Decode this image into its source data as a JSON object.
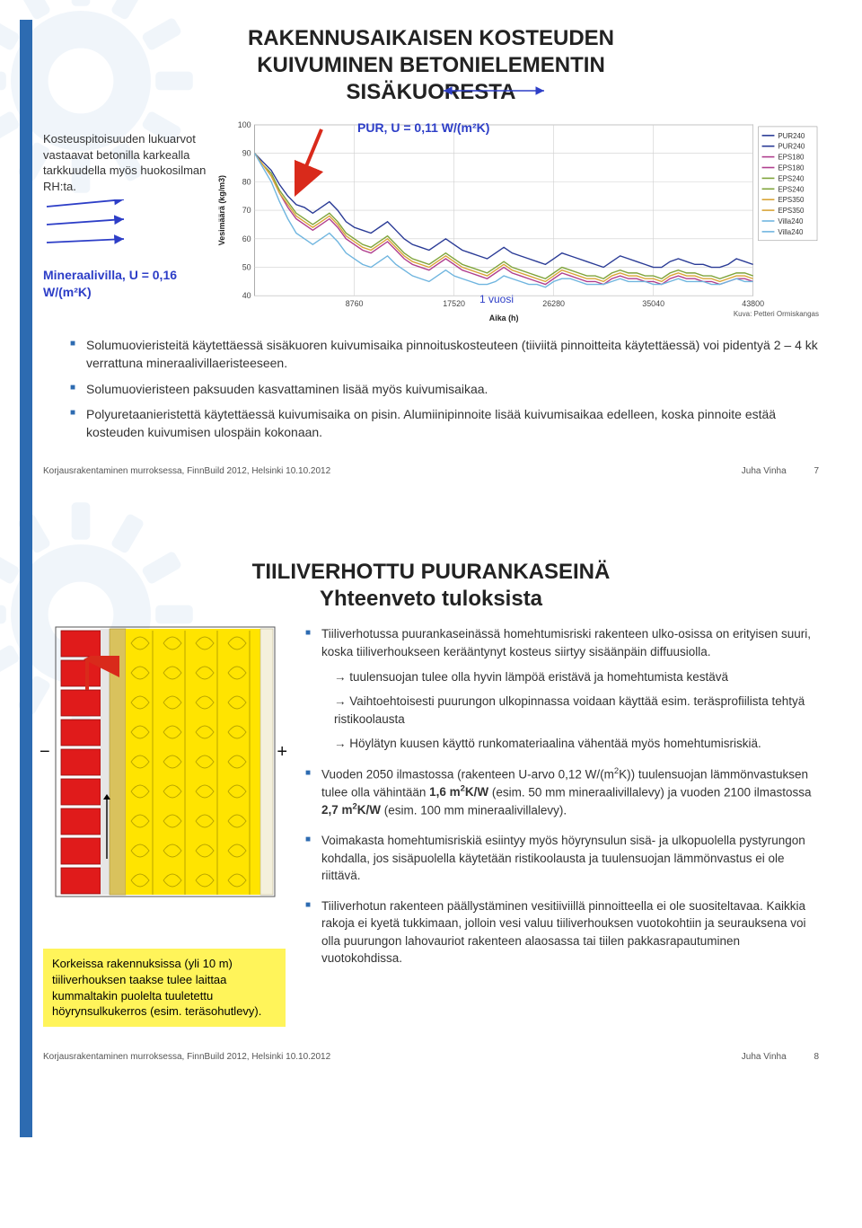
{
  "slide1": {
    "title1": "RAKENNUSAIKAISEN KOSTEUDEN",
    "title2": "KUIVUMINEN BETONIELEMENTIN",
    "title3": "SISÄKUORESTA",
    "leftNote": "Kosteuspitoisuuden lukuarvot vastaavat betonilla karkealla tarkkuudella myös huokosilman RH:ta.",
    "purLabel": "PUR, U = 0,11 W/(m²K)",
    "minLabel": "Mineraalivilla, U = 0,16 W/(m²K)",
    "yearLabel": "1 vuosi",
    "chart": {
      "yLabel": "Vesimäärä (kg/m3)",
      "xLabel": "Aika (h)",
      "ylim": [
        40,
        100
      ],
      "yticks": [
        40,
        50,
        60,
        70,
        80,
        90,
        100
      ],
      "xticks": [
        "8760",
        "17520",
        "26280",
        "35040",
        "43800"
      ],
      "legend": [
        "PUR240",
        "PUR240",
        "EPS180",
        "EPS180",
        "EPS240",
        "EPS240",
        "EPS350",
        "EPS350",
        "Villa240",
        "Villa240"
      ],
      "legend_colors": [
        "#2a3b96",
        "#2a3b96",
        "#b03f8e",
        "#b03f8e",
        "#7fa43a",
        "#7fa43a",
        "#d9a437",
        "#d9a437",
        "#6fb5df",
        "#6fb5df"
      ],
      "series": [
        {
          "color": "#2a3b96",
          "width": 1.4,
          "y": [
            90,
            87,
            84,
            79,
            75,
            72,
            71,
            69,
            71,
            73,
            70,
            66,
            64,
            63,
            62,
            64,
            66,
            63,
            60,
            58,
            57,
            56,
            58,
            60,
            58,
            56,
            55,
            54,
            53,
            55,
            57,
            55,
            54,
            53,
            52,
            51,
            53,
            55,
            54,
            53,
            52,
            51,
            50,
            52,
            54,
            53,
            52,
            51,
            50,
            50,
            52,
            53,
            52,
            51,
            51,
            50,
            50,
            51,
            53,
            52,
            51
          ]
        },
        {
          "color": "#b03f8e",
          "width": 1.4,
          "y": [
            90,
            86,
            82,
            76,
            71,
            67,
            65,
            63,
            65,
            67,
            64,
            60,
            58,
            56,
            55,
            57,
            59,
            56,
            53,
            51,
            50,
            49,
            51,
            53,
            51,
            49,
            48,
            47,
            46,
            48,
            50,
            48,
            47,
            46,
            45,
            44,
            46,
            48,
            47,
            46,
            45,
            45,
            44,
            46,
            47,
            46,
            46,
            45,
            45,
            44,
            46,
            47,
            46,
            46,
            45,
            45,
            44,
            45,
            46,
            46,
            45
          ]
        },
        {
          "color": "#7fa43a",
          "width": 1.4,
          "y": [
            90,
            86,
            83,
            77,
            73,
            69,
            67,
            65,
            67,
            69,
            66,
            62,
            60,
            58,
            57,
            59,
            61,
            58,
            55,
            53,
            52,
            51,
            53,
            55,
            53,
            51,
            50,
            49,
            48,
            50,
            52,
            50,
            49,
            48,
            47,
            46,
            48,
            50,
            49,
            48,
            47,
            47,
            46,
            48,
            49,
            48,
            48,
            47,
            47,
            46,
            48,
            49,
            48,
            48,
            47,
            47,
            46,
            47,
            48,
            48,
            47
          ]
        },
        {
          "color": "#d9a437",
          "width": 1.4,
          "y": [
            90,
            86,
            82,
            76,
            72,
            68,
            66,
            64,
            66,
            68,
            65,
            61,
            59,
            57,
            56,
            58,
            60,
            57,
            54,
            52,
            51,
            50,
            52,
            54,
            52,
            50,
            49,
            48,
            47,
            49,
            51,
            49,
            48,
            47,
            46,
            45,
            47,
            49,
            48,
            47,
            46,
            46,
            45,
            47,
            48,
            47,
            47,
            46,
            46,
            45,
            47,
            48,
            47,
            47,
            46,
            46,
            45,
            46,
            47,
            47,
            46
          ]
        },
        {
          "color": "#6fb5df",
          "width": 1.4,
          "y": [
            90,
            85,
            80,
            73,
            67,
            62,
            60,
            58,
            60,
            62,
            59,
            55,
            53,
            51,
            50,
            52,
            54,
            51,
            49,
            47,
            46,
            45,
            47,
            49,
            47,
            46,
            45,
            44,
            44,
            45,
            47,
            46,
            45,
            44,
            44,
            43,
            45,
            46,
            46,
            45,
            44,
            44,
            44,
            45,
            46,
            45,
            45,
            45,
            44,
            44,
            45,
            46,
            45,
            45,
            45,
            44,
            44,
            45,
            46,
            45,
            45
          ]
        }
      ],
      "bg": "#ffffff",
      "grid": "#cfcfcf"
    },
    "imgCredit": "Kuva: Petteri Ormiskangas",
    "bullets": [
      "Solumuovieristeitä käytettäessä sisäkuoren kuivumisaika pinnoituskosteuteen (tiiviitä pinnoitteita käytettäessä) voi pidentyä 2 – 4 kk verrattuna mineraalivillaeristeeseen.",
      "Solumuovieristeen paksuuden kasvattaminen lisää myös kuivumisaikaa.",
      "Polyuretaanieristettä käytettäessä kuivumisaika on pisin. Alumiinipinnoite lisää kuivumisaikaa edelleen, koska pinnoite estää kosteuden kuivumisen ulospäin kokonaan."
    ],
    "footerLeft": "Korjausrakentaminen murroksessa, FinnBuild 2012, Helsinki 10.10.2012",
    "footerName": "Juha Vinha",
    "footerNum": "7"
  },
  "slide2": {
    "title1": "TIILIVERHOTTU PUURANKASEINÄ",
    "title2": "Yhteenveto tuloksista",
    "wall": {
      "brick_color": "#e01b1b",
      "mortar_color": "#e6e6e6",
      "sheathing_color": "#d9c25d",
      "insulation_color": "#ffe400",
      "stud_line": "#b8a400",
      "inner_board": "#f4f0dc"
    },
    "yellowNote": "Korkeissa rakennuksissa (yli 10 m) tiiliverhouksen taakse tulee laittaa kummaltakin puolelta tuuletettu höyrynsulkukerros (esim. teräsohutlevy).",
    "items": [
      {
        "lead": "Tiiliverhotussa puurankaseinässä homehtumisriski rakenteen ulko-osissa on erityisen suuri, koska tiiliverhoukseen kerääntynyt kosteus siirtyy sisäänpäin diffuusiolla.",
        "arrows": [
          "tuulensuojan tulee olla hyvin lämpöä eristävä ja homehtumista kestävä",
          "Vaihtoehtoisesti puurungon ulkopinnassa voidaan käyttää esim. teräsprofiilista tehtyä ristikoolausta",
          "Höylätyn kuusen käyttö runkomateriaalina vähentää myös homehtumisriskiä."
        ]
      },
      {
        "lead_html": "Vuoden 2050 ilmastossa (rakenteen U-arvo 0,12 W/(m<sup>2</sup>K)) tuulensuojan lämmönvastuksen tulee olla vähintään <b>1,6 m<sup>2</sup>K/W</b> (esim. 50 mm mineraalivillalevy) ja vuoden 2100 ilmastossa <b>2,7 m<sup>2</sup>K/W</b> (esim. 100 mm mineraalivillalevy)."
      },
      {
        "lead": "Voimakasta homehtumisriskiä esiintyy myös höyrynsulun sisä- ja ulkopuolella pystyrungon kohdalla, jos sisäpuolella käytetään ristikoolausta ja tuulensuojan lämmönvastus ei ole riittävä."
      },
      {
        "lead": "Tiiliverhotun rakenteen päällystäminen vesitiiviillä pinnoitteella ei ole suositeltavaa. Kaikkia rakoja ei kyetä tukkimaan, jolloin vesi valuu tiiliverhouksen vuotokohtiin ja seurauksena voi olla puurungon lahovauriot rakenteen alaosassa tai tiilen pakkasrapautuminen vuotokohdissa."
      }
    ],
    "footerLeft": "Korjausrakentaminen murroksessa, FinnBuild 2012, Helsinki 10.10.2012",
    "footerName": "Juha Vinha",
    "footerNum": "8"
  }
}
